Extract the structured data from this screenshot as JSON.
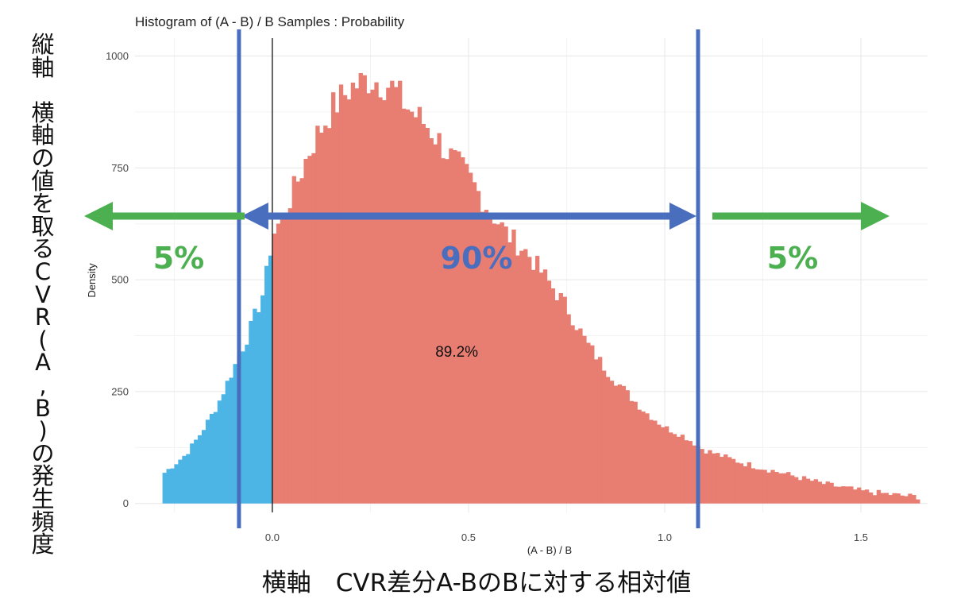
{
  "chart_data": {
    "type": "bar",
    "title": "Histogram of (A - B) / B Samples : Probability",
    "xlabel": "(A - B) / B",
    "ylabel": "Density",
    "xlim": [
      -0.35,
      1.67
    ],
    "ylim": [
      -20,
      1040
    ],
    "x_ticks": [
      0,
      0.5,
      1,
      1.5
    ],
    "x_tick_labels": [
      "0.0",
      "0.5",
      "1.0",
      "1.5"
    ],
    "y_ticks": [
      0,
      250,
      500,
      750,
      1000
    ],
    "y_tick_labels": [
      "0",
      "250",
      "500",
      "750",
      "1000"
    ],
    "grid": true,
    "bin_width": 0.01,
    "bin_range": [
      -0.28,
      1.65
    ],
    "fill_colors": {
      "negative": "#4DB5E6",
      "positive": "#E87D72"
    },
    "density_profile": [
      {
        "x": -0.28,
        "y": 65
      },
      {
        "x": -0.22,
        "y": 110
      },
      {
        "x": -0.18,
        "y": 160
      },
      {
        "x": -0.14,
        "y": 220
      },
      {
        "x": -0.1,
        "y": 300
      },
      {
        "x": -0.06,
        "y": 380
      },
      {
        "x": -0.02,
        "y": 480
      },
      {
        "x": 0.0,
        "y": 600
      },
      {
        "x": 0.02,
        "y": 630
      },
      {
        "x": 0.05,
        "y": 690
      },
      {
        "x": 0.1,
        "y": 800
      },
      {
        "x": 0.15,
        "y": 880
      },
      {
        "x": 0.2,
        "y": 930
      },
      {
        "x": 0.25,
        "y": 950
      },
      {
        "x": 0.3,
        "y": 935
      },
      {
        "x": 0.35,
        "y": 880
      },
      {
        "x": 0.4,
        "y": 840
      },
      {
        "x": 0.45,
        "y": 780
      },
      {
        "x": 0.5,
        "y": 730
      },
      {
        "x": 0.55,
        "y": 660
      },
      {
        "x": 0.6,
        "y": 600
      },
      {
        "x": 0.65,
        "y": 560
      },
      {
        "x": 0.7,
        "y": 500
      },
      {
        "x": 0.75,
        "y": 440
      },
      {
        "x": 0.8,
        "y": 360
      },
      {
        "x": 0.85,
        "y": 300
      },
      {
        "x": 0.9,
        "y": 250
      },
      {
        "x": 0.95,
        "y": 205
      },
      {
        "x": 1.0,
        "y": 170
      },
      {
        "x": 1.05,
        "y": 150
      },
      {
        "x": 1.1,
        "y": 120
      },
      {
        "x": 1.2,
        "y": 90
      },
      {
        "x": 1.3,
        "y": 68
      },
      {
        "x": 1.4,
        "y": 45
      },
      {
        "x": 1.5,
        "y": 28
      },
      {
        "x": 1.6,
        "y": 18
      },
      {
        "x": 1.65,
        "y": 15
      }
    ],
    "zero_line_x": 0,
    "interval_bounds": [
      -0.085,
      1.085
    ],
    "annotation_value": "89.2%",
    "annotation_position": {
      "x": 0.47,
      "y": 340
    }
  },
  "overlay": {
    "left_tail_pct": "5%",
    "middle_pct": "90%",
    "right_tail_pct": "5%",
    "interval_color": "#4A6EBE",
    "tail_color": "#4CAF50"
  },
  "captions": {
    "y_caption_chars": [
      "縦",
      "軸",
      "",
      "横",
      "軸",
      "の",
      "値",
      "を",
      "取",
      "る",
      "C",
      "V",
      "R",
      "(",
      "A",
      ",",
      "B",
      ")",
      "の",
      "発",
      "生",
      "頻",
      "度"
    ],
    "x_caption": "横軸　CVR差分A-BのBに対する相対値"
  }
}
